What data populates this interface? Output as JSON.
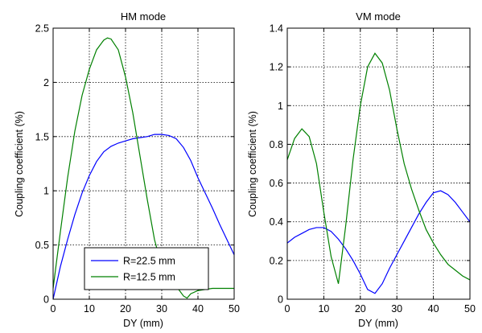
{
  "chart_data": [
    {
      "type": "line",
      "title": "HM mode",
      "xlabel": "DY (mm)",
      "ylabel": "Coupling coefficient (%)",
      "xlim": [
        0,
        50
      ],
      "ylim": [
        0,
        2.5
      ],
      "xticks": [
        "0",
        "10",
        "20",
        "30",
        "40",
        "50"
      ],
      "yticks": [
        "0",
        "0.5",
        "1",
        "1.5",
        "2",
        "2.5"
      ],
      "grid": true,
      "legend": "bottom-left",
      "series": [
        {
          "name": "R=22.5 mm",
          "color": "#0000ff",
          "x": [
            0,
            2,
            4,
            6,
            8,
            10,
            12,
            14,
            16,
            18,
            20,
            22,
            24,
            26,
            28,
            30,
            32,
            34,
            36,
            38,
            40,
            42,
            44,
            46,
            48,
            50
          ],
          "y": [
            0.0,
            0.3,
            0.55,
            0.78,
            0.98,
            1.14,
            1.27,
            1.36,
            1.41,
            1.44,
            1.46,
            1.48,
            1.49,
            1.5,
            1.52,
            1.52,
            1.51,
            1.48,
            1.4,
            1.28,
            1.12,
            0.98,
            0.84,
            0.69,
            0.55,
            0.41
          ]
        },
        {
          "name": "R=12.5 mm",
          "color": "#008000",
          "x": [
            0,
            2,
            4,
            6,
            8,
            10,
            12,
            14,
            15,
            16,
            18,
            20,
            22,
            24,
            26,
            28,
            30,
            32,
            34,
            36,
            37,
            38,
            40,
            42,
            44,
            46,
            48,
            50
          ],
          "y": [
            0.1,
            0.62,
            1.12,
            1.55,
            1.88,
            2.12,
            2.3,
            2.39,
            2.41,
            2.4,
            2.3,
            2.05,
            1.72,
            1.32,
            0.92,
            0.55,
            0.3,
            0.18,
            0.12,
            0.03,
            0.01,
            0.05,
            0.08,
            0.09,
            0.1,
            0.1,
            0.1,
            0.1
          ]
        }
      ]
    },
    {
      "type": "line",
      "title": "VM mode",
      "xlabel": "DY (mm)",
      "ylabel": "Coupling coefficient (%)",
      "xlim": [
        0,
        50
      ],
      "ylim": [
        0,
        1.4
      ],
      "xticks": [
        "0",
        "10",
        "20",
        "30",
        "40",
        "50"
      ],
      "yticks": [
        "0",
        "0.2",
        "0.4",
        "0.6",
        "0.8",
        "1",
        "1.2",
        "1.4"
      ],
      "grid": true,
      "series": [
        {
          "color": "#0000ff",
          "x": [
            0,
            2,
            4,
            6,
            8,
            10,
            12,
            14,
            16,
            18,
            20,
            22,
            24,
            26,
            28,
            30,
            32,
            34,
            36,
            38,
            40,
            42,
            44,
            46,
            48,
            50
          ],
          "y": [
            0.29,
            0.32,
            0.34,
            0.36,
            0.37,
            0.37,
            0.35,
            0.31,
            0.26,
            0.2,
            0.13,
            0.05,
            0.03,
            0.08,
            0.16,
            0.23,
            0.3,
            0.37,
            0.44,
            0.5,
            0.55,
            0.56,
            0.54,
            0.5,
            0.45,
            0.4
          ]
        },
        {
          "color": "#008000",
          "x": [
            0,
            2,
            4,
            6,
            8,
            10,
            12,
            14,
            16,
            18,
            20,
            22,
            24,
            26,
            28,
            30,
            32,
            34,
            36,
            38,
            40,
            42,
            44,
            46,
            48,
            50
          ],
          "y": [
            0.72,
            0.83,
            0.88,
            0.84,
            0.7,
            0.45,
            0.22,
            0.08,
            0.38,
            0.72,
            1.0,
            1.2,
            1.27,
            1.22,
            1.08,
            0.88,
            0.7,
            0.57,
            0.46,
            0.36,
            0.29,
            0.23,
            0.18,
            0.15,
            0.12,
            0.1
          ]
        }
      ]
    }
  ]
}
